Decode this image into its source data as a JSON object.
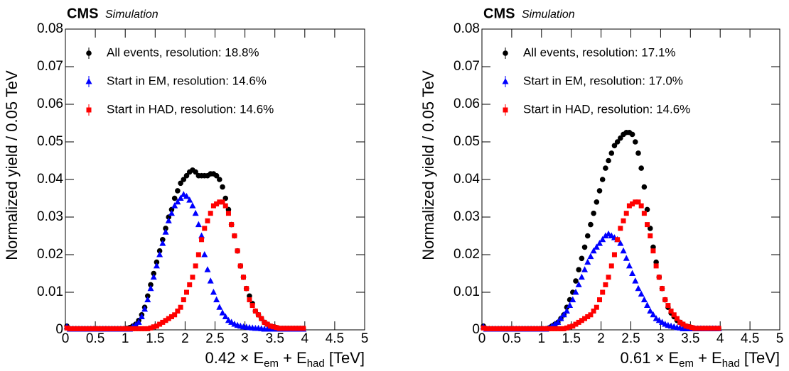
{
  "chart_data": [
    {
      "type": "scatter",
      "label": "CMS",
      "sublabel": "Simulation",
      "xlabel": [
        "0.42 × E",
        "em",
        " + E",
        "had",
        " [TeV]"
      ],
      "ylabel": "Normalized yield / 0.05 TeV",
      "xlim": [
        0,
        5
      ],
      "xticks": [
        0,
        0.5,
        1,
        1.5,
        2,
        2.5,
        3,
        3.5,
        4,
        4.5,
        5
      ],
      "ylim": [
        0,
        0.08
      ],
      "yticks": [
        0,
        0.01,
        0.02,
        0.03,
        0.04,
        0.05,
        0.06,
        0.07,
        0.08
      ],
      "x": [
        0.025,
        0.075,
        0.125,
        0.175,
        0.225,
        0.275,
        0.325,
        0.375,
        0.425,
        0.475,
        0.525,
        0.575,
        0.625,
        0.675,
        0.725,
        0.775,
        0.825,
        0.875,
        0.925,
        0.975,
        1.025,
        1.075,
        1.125,
        1.175,
        1.225,
        1.275,
        1.325,
        1.375,
        1.425,
        1.475,
        1.525,
        1.575,
        1.625,
        1.675,
        1.725,
        1.775,
        1.825,
        1.875,
        1.925,
        1.975,
        2.025,
        2.075,
        2.125,
        2.175,
        2.225,
        2.275,
        2.325,
        2.375,
        2.425,
        2.475,
        2.525,
        2.575,
        2.625,
        2.675,
        2.725,
        2.775,
        2.825,
        2.875,
        2.925,
        2.975,
        3.025,
        3.075,
        3.125,
        3.175,
        3.225,
        3.275,
        3.325,
        3.375,
        3.425,
        3.475,
        3.525,
        3.575,
        3.625,
        3.675,
        3.725,
        3.775,
        3.825,
        3.875,
        3.925,
        3.975
      ],
      "series": [
        {
          "name": "All events, resolution: 18.8%",
          "color": "#000000",
          "marker": "circle",
          "values": [
            0.001,
            0.0003,
            0.0003,
            0.0003,
            0.0003,
            0.0003,
            0.0003,
            0.0003,
            0.0003,
            0.0003,
            0.0003,
            0.0003,
            0.0003,
            0.0003,
            0.0003,
            0.0003,
            0.0003,
            0.0003,
            0.0003,
            0.0003,
            0.0004,
            0.0006,
            0.001,
            0.0015,
            0.0025,
            0.004,
            0.006,
            0.009,
            0.012,
            0.015,
            0.018,
            0.021,
            0.024,
            0.027,
            0.03,
            0.032,
            0.035,
            0.037,
            0.039,
            0.04,
            0.041,
            0.042,
            0.0425,
            0.042,
            0.041,
            0.041,
            0.041,
            0.041,
            0.0415,
            0.0415,
            0.041,
            0.04,
            0.038,
            0.035,
            0.032,
            0.028,
            0.025,
            0.021,
            0.017,
            0.014,
            0.011,
            0.009,
            0.007,
            0.005,
            0.004,
            0.003,
            0.002,
            0.0015,
            0.001,
            0.0008,
            0.0006,
            0.0004,
            0.0004,
            0.0004,
            0.0004,
            0.0004,
            0.0004,
            0.0004,
            0.0004,
            0.0004
          ]
        },
        {
          "name": "Start in EM, resolution: 14.6%",
          "color": "#0000ff",
          "marker": "triangle",
          "values": [
            0.0008,
            0.0002,
            0.0002,
            0.0002,
            0.0002,
            0.0002,
            0.0002,
            0.0002,
            0.0002,
            0.0002,
            0.0002,
            0.0002,
            0.0002,
            0.0002,
            0.0002,
            0.0002,
            0.0002,
            0.0002,
            0.0002,
            0.0002,
            0.0002,
            0.0002,
            0.0008,
            0.0013,
            0.002,
            0.0035,
            0.0055,
            0.008,
            0.011,
            0.014,
            0.017,
            0.02,
            0.023,
            0.026,
            0.029,
            0.031,
            0.033,
            0.034,
            0.035,
            0.036,
            0.0355,
            0.0345,
            0.033,
            0.031,
            0.028,
            0.025,
            0.02,
            0.016,
            0.013,
            0.01,
            0.008,
            0.006,
            0.0045,
            0.0035,
            0.0025,
            0.002,
            0.0015,
            0.0012,
            0.001,
            0.0008,
            0.0007,
            0.0006,
            0.0005,
            0.0004,
            0.0004,
            0.0003,
            0.0002,
            0.0002,
            0.0002,
            0.0002,
            0.0002,
            0.0002,
            0.0002,
            0.0002,
            0.0002,
            0.0002,
            0.0002,
            0.0002,
            0.0002,
            0.0002
          ]
        },
        {
          "name": "Start in HAD, resolution: 14.6%",
          "color": "#ff0000",
          "marker": "square",
          "values": [
            0.0005,
            0.0003,
            0.0003,
            0.0003,
            0.0003,
            0.0003,
            0.0003,
            0.0003,
            0.0003,
            0.0003,
            0.0003,
            0.0003,
            0.0003,
            0.0003,
            0.0003,
            0.0003,
            0.0003,
            0.0003,
            0.0003,
            0.0003,
            0.0003,
            0.0003,
            0.0003,
            0.0003,
            0.0003,
            0.0003,
            0.0003,
            0.0003,
            0.0005,
            0.0008,
            0.001,
            0.0015,
            0.002,
            0.0025,
            0.003,
            0.0035,
            0.004,
            0.005,
            0.006,
            0.008,
            0.01,
            0.012,
            0.014,
            0.017,
            0.02,
            0.024,
            0.027,
            0.029,
            0.031,
            0.033,
            0.0335,
            0.034,
            0.034,
            0.033,
            0.031,
            0.028,
            0.025,
            0.021,
            0.017,
            0.014,
            0.011,
            0.008,
            0.0065,
            0.005,
            0.004,
            0.003,
            0.002,
            0.0015,
            0.001,
            0.0008,
            0.0006,
            0.0004,
            0.0004,
            0.0004,
            0.0004,
            0.0004,
            0.0004,
            0.0004,
            0.0004,
            0.0004
          ]
        }
      ]
    },
    {
      "type": "scatter",
      "label": "CMS",
      "sublabel": "Simulation",
      "xlabel": [
        "0.61 × E",
        "em",
        " + E",
        "had",
        " [TeV]"
      ],
      "ylabel": "Normalized yield / 0.05 TeV",
      "xlim": [
        0,
        5
      ],
      "xticks": [
        0,
        0.5,
        1,
        1.5,
        2,
        2.5,
        3,
        3.5,
        4,
        4.5,
        5
      ],
      "ylim": [
        0,
        0.08
      ],
      "yticks": [
        0,
        0.01,
        0.02,
        0.03,
        0.04,
        0.05,
        0.06,
        0.07,
        0.08
      ],
      "x": [
        0.025,
        0.075,
        0.125,
        0.175,
        0.225,
        0.275,
        0.325,
        0.375,
        0.425,
        0.475,
        0.525,
        0.575,
        0.625,
        0.675,
        0.725,
        0.775,
        0.825,
        0.875,
        0.925,
        0.975,
        1.025,
        1.075,
        1.125,
        1.175,
        1.225,
        1.275,
        1.325,
        1.375,
        1.425,
        1.475,
        1.525,
        1.575,
        1.625,
        1.675,
        1.725,
        1.775,
        1.825,
        1.875,
        1.925,
        1.975,
        2.025,
        2.075,
        2.125,
        2.175,
        2.225,
        2.275,
        2.325,
        2.375,
        2.425,
        2.475,
        2.525,
        2.575,
        2.625,
        2.675,
        2.725,
        2.775,
        2.825,
        2.875,
        2.925,
        2.975,
        3.025,
        3.075,
        3.125,
        3.175,
        3.225,
        3.275,
        3.325,
        3.375,
        3.425,
        3.475,
        3.525,
        3.575,
        3.625,
        3.675,
        3.725,
        3.775,
        3.825,
        3.875,
        3.925,
        3.975
      ],
      "series": [
        {
          "name": "All events, resolution: 17.1%",
          "color": "#000000",
          "marker": "circle",
          "values": [
            0.001,
            0.0003,
            0.0003,
            0.0003,
            0.0003,
            0.0003,
            0.0003,
            0.0003,
            0.0003,
            0.0003,
            0.0003,
            0.0003,
            0.0003,
            0.0003,
            0.0003,
            0.0003,
            0.0003,
            0.0003,
            0.0003,
            0.0003,
            0.0003,
            0.0003,
            0.0005,
            0.001,
            0.0015,
            0.002,
            0.003,
            0.004,
            0.006,
            0.008,
            0.01,
            0.013,
            0.016,
            0.019,
            0.022,
            0.025,
            0.028,
            0.031,
            0.034,
            0.037,
            0.04,
            0.043,
            0.045,
            0.047,
            0.049,
            0.05,
            0.051,
            0.052,
            0.0525,
            0.0525,
            0.052,
            0.05,
            0.047,
            0.043,
            0.038,
            0.032,
            0.027,
            0.022,
            0.018,
            0.014,
            0.011,
            0.008,
            0.006,
            0.0045,
            0.0035,
            0.0025,
            0.002,
            0.0015,
            0.001,
            0.0008,
            0.0006,
            0.0004,
            0.0004,
            0.0004,
            0.0004,
            0.0004,
            0.0004,
            0.0004,
            0.0004,
            0.0004
          ]
        },
        {
          "name": "Start in EM, resolution: 17.0%",
          "color": "#0000ff",
          "marker": "triangle",
          "values": [
            0.0008,
            0.0002,
            0.0002,
            0.0002,
            0.0002,
            0.0002,
            0.0002,
            0.0002,
            0.0002,
            0.0002,
            0.0002,
            0.0002,
            0.0002,
            0.0002,
            0.0002,
            0.0002,
            0.0002,
            0.0002,
            0.0002,
            0.0002,
            0.0002,
            0.0002,
            0.0005,
            0.001,
            0.0015,
            0.002,
            0.003,
            0.004,
            0.005,
            0.0065,
            0.008,
            0.01,
            0.012,
            0.014,
            0.016,
            0.018,
            0.0195,
            0.021,
            0.022,
            0.023,
            0.024,
            0.025,
            0.0255,
            0.025,
            0.0245,
            0.024,
            0.023,
            0.021,
            0.019,
            0.017,
            0.015,
            0.013,
            0.011,
            0.0095,
            0.008,
            0.0065,
            0.005,
            0.004,
            0.003,
            0.0025,
            0.002,
            0.0015,
            0.0012,
            0.001,
            0.0008,
            0.0006,
            0.0005,
            0.0003,
            0.0003,
            0.0003,
            0.0003,
            0.0003,
            0.0003,
            0.0003,
            0.0003,
            0.0003,
            0.0003,
            0.0003,
            0.0003,
            0.0003
          ]
        },
        {
          "name": "Start in HAD, resolution: 14.6%",
          "color": "#ff0000",
          "marker": "square",
          "values": [
            0.0005,
            0.0003,
            0.0003,
            0.0003,
            0.0003,
            0.0003,
            0.0003,
            0.0003,
            0.0003,
            0.0003,
            0.0003,
            0.0003,
            0.0003,
            0.0003,
            0.0003,
            0.0003,
            0.0003,
            0.0003,
            0.0003,
            0.0003,
            0.0003,
            0.0003,
            0.0003,
            0.0003,
            0.0003,
            0.0003,
            0.0003,
            0.0003,
            0.0005,
            0.0008,
            0.001,
            0.0015,
            0.002,
            0.0025,
            0.003,
            0.0035,
            0.004,
            0.005,
            0.006,
            0.008,
            0.01,
            0.012,
            0.014,
            0.017,
            0.02,
            0.024,
            0.027,
            0.029,
            0.031,
            0.033,
            0.0335,
            0.034,
            0.034,
            0.033,
            0.031,
            0.028,
            0.025,
            0.021,
            0.017,
            0.014,
            0.011,
            0.008,
            0.0065,
            0.005,
            0.004,
            0.003,
            0.002,
            0.0015,
            0.001,
            0.0008,
            0.0006,
            0.0004,
            0.0004,
            0.0004,
            0.0004,
            0.0004,
            0.0004,
            0.0004,
            0.0004,
            0.0004
          ]
        }
      ]
    }
  ]
}
